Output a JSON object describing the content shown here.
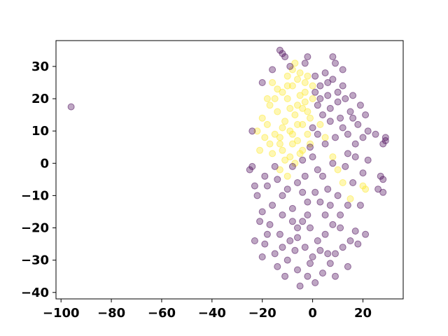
{
  "chart_data": {
    "type": "scatter",
    "title": "",
    "xlabel": "",
    "ylabel": "",
    "xlim": [
      -102,
      36
    ],
    "ylim": [
      -42,
      38
    ],
    "xticks": [
      -100,
      -80,
      -60,
      -40,
      -20,
      0,
      20
    ],
    "yticks": [
      -40,
      -30,
      -20,
      -10,
      0,
      10,
      20,
      30
    ],
    "xtick_labels": [
      "−100",
      "−80",
      "−60",
      "−40",
      "−20",
      "0",
      "20"
    ],
    "ytick_labels": [
      "−40",
      "−30",
      "−20",
      "−10",
      "0",
      "10",
      "20",
      "30"
    ],
    "grid": false,
    "legend": "none",
    "marker_opacity": 0.35,
    "series": [
      {
        "color": "#fde725",
        "points": [
          [
            -12,
            22
          ],
          [
            -10,
            20
          ],
          [
            -8,
            24
          ],
          [
            -6,
            18
          ],
          [
            -14,
            16
          ],
          [
            -11,
            13
          ],
          [
            -9,
            10
          ],
          [
            -7,
            15
          ],
          [
            -5,
            21
          ],
          [
            -3,
            19
          ],
          [
            -4,
            12
          ],
          [
            -2,
            9
          ],
          [
            -13,
            8
          ],
          [
            -15,
            20
          ],
          [
            -10,
            27
          ],
          [
            -8,
            29
          ],
          [
            -6,
            26
          ],
          [
            -12,
            4
          ],
          [
            -9,
            2
          ],
          [
            -7,
            0
          ],
          [
            -16,
            3
          ],
          [
            -18,
            12
          ],
          [
            -17,
            18
          ],
          [
            -14,
            23
          ],
          [
            -3,
            25
          ],
          [
            -2,
            16
          ],
          [
            -1,
            6
          ],
          [
            -4,
            4
          ],
          [
            -6,
            7
          ],
          [
            -11,
            1
          ],
          [
            -13,
            -2
          ],
          [
            -10,
            -4
          ],
          [
            -19,
            8
          ],
          [
            -20,
            14
          ],
          [
            -15,
            9
          ],
          [
            -5,
            28
          ],
          [
            -7,
            31
          ],
          [
            -3,
            22
          ],
          [
            0,
            20
          ],
          [
            -1,
            14
          ],
          [
            -9,
            17
          ],
          [
            -12,
            11
          ],
          [
            -8,
            6
          ],
          [
            -5,
            3
          ],
          [
            -16,
            25
          ],
          [
            -18,
            20
          ],
          [
            3,
            12
          ],
          [
            5,
            8
          ],
          [
            8,
            2
          ],
          [
            10,
            -2
          ],
          [
            12,
            -6
          ],
          [
            21,
            -8
          ],
          [
            20,
            -7
          ],
          [
            15,
            -11
          ],
          [
            -22,
            10
          ],
          [
            -21,
            4
          ],
          [
            -10,
            24
          ],
          [
            -6,
            12
          ],
          [
            -4,
            17
          ],
          [
            -2,
            27
          ],
          [
            0,
            24
          ],
          [
            -13,
            6
          ],
          [
            -17,
            6
          ],
          [
            -8,
            9
          ]
        ]
      },
      {
        "color": "#440154",
        "points": [
          [
            -96,
            17.5
          ],
          [
            -12,
            34
          ],
          [
            -11,
            33
          ],
          [
            -13,
            35
          ],
          [
            -2,
            33
          ],
          [
            8,
            33
          ],
          [
            9,
            31
          ],
          [
            12,
            29
          ],
          [
            5,
            28
          ],
          [
            8,
            26
          ],
          [
            3,
            24
          ],
          [
            6,
            21
          ],
          [
            10,
            22
          ],
          [
            13,
            20
          ],
          [
            2,
            18
          ],
          [
            4,
            15
          ],
          [
            7,
            13
          ],
          [
            11,
            14
          ],
          [
            15,
            16
          ],
          [
            18,
            12
          ],
          [
            14,
            9
          ],
          [
            9,
            8
          ],
          [
            5,
            6
          ],
          [
            17,
            6
          ],
          [
            20,
            8
          ],
          [
            22,
            10
          ],
          [
            25,
            9
          ],
          [
            29,
            8
          ],
          [
            29,
            7
          ],
          [
            28,
            6
          ],
          [
            6,
            25
          ],
          [
            10,
            19
          ],
          [
            1,
            22
          ],
          [
            3,
            20
          ],
          [
            0,
            11
          ],
          [
            12,
            24
          ],
          [
            16,
            21
          ],
          [
            19,
            18
          ],
          [
            14,
            3
          ],
          [
            8,
            0
          ],
          [
            2,
            -2
          ],
          [
            -3,
            -4
          ],
          [
            -6,
            -6
          ],
          [
            -10,
            -8
          ],
          [
            -14,
            -5
          ],
          [
            -18,
            -7
          ],
          [
            -22,
            -10
          ],
          [
            -20,
            -15
          ],
          [
            -16,
            -13
          ],
          [
            -12,
            -16
          ],
          [
            -8,
            -14
          ],
          [
            -4,
            -18
          ],
          [
            -1,
            -20
          ],
          [
            2,
            -24
          ],
          [
            5,
            -22
          ],
          [
            8,
            -19
          ],
          [
            11,
            -16
          ],
          [
            14,
            -13
          ],
          [
            10,
            -10
          ],
          [
            6,
            -8
          ],
          [
            1,
            -9
          ],
          [
            -2,
            -12
          ],
          [
            -6,
            -20
          ],
          [
            -9,
            -24
          ],
          [
            -13,
            -22
          ],
          [
            -17,
            -19
          ],
          [
            -19,
            -25
          ],
          [
            -15,
            -28
          ],
          [
            -10,
            -30
          ],
          [
            -6,
            -33
          ],
          [
            -2,
            -35
          ],
          [
            1,
            -37
          ],
          [
            4,
            -34
          ],
          [
            7,
            -31
          ],
          [
            9,
            -28
          ],
          [
            12,
            -26
          ],
          [
            15,
            -24
          ],
          [
            17,
            -21
          ],
          [
            18,
            -25
          ],
          [
            19,
            -13
          ],
          [
            16,
            -6
          ],
          [
            20,
            -3
          ],
          [
            22,
            1
          ],
          [
            17,
            2
          ],
          [
            13,
            -1
          ],
          [
            -24,
            -1
          ],
          [
            -23,
            -7
          ],
          [
            -21,
            -18
          ],
          [
            -18,
            -22
          ],
          [
            -11,
            -35
          ],
          [
            -5,
            -38
          ],
          [
            0,
            -29
          ],
          [
            3,
            -27
          ],
          [
            -3,
            -26
          ],
          [
            -7,
            -27
          ],
          [
            -12,
            -10
          ],
          [
            -15,
            -1
          ],
          [
            -19,
            -4
          ],
          [
            -8,
            -1
          ],
          [
            -4,
            1
          ],
          [
            0,
            2
          ],
          [
            4,
            -4
          ],
          [
            7,
            -13
          ],
          [
            11,
            -20
          ],
          [
            14,
            -32
          ],
          [
            9,
            -35
          ],
          [
            -1,
            -31
          ],
          [
            -14,
            -32
          ],
          [
            -20,
            -29
          ],
          [
            27,
            -4
          ],
          [
            28,
            -5
          ],
          [
            26,
            -8
          ],
          [
            28,
            -9
          ],
          [
            21,
            -22
          ],
          [
            -16,
            29
          ],
          [
            -20,
            25
          ],
          [
            -24,
            10
          ],
          [
            -25,
            -2
          ],
          [
            -23,
            -24
          ],
          [
            -9,
            30
          ],
          [
            -3,
            31
          ],
          [
            1,
            27
          ],
          [
            7,
            17
          ],
          [
            12,
            11
          ],
          [
            16,
            14
          ],
          [
            21,
            15
          ],
          [
            2,
            9
          ],
          [
            -1,
            5
          ],
          [
            -4,
            -9
          ],
          [
            -8,
            -18
          ],
          [
            -12,
            -26
          ],
          [
            5,
            -16
          ],
          [
            -6,
            -23
          ],
          [
            -2,
            -16
          ],
          [
            3,
            -12
          ],
          [
            6,
            -28
          ]
        ]
      }
    ]
  }
}
